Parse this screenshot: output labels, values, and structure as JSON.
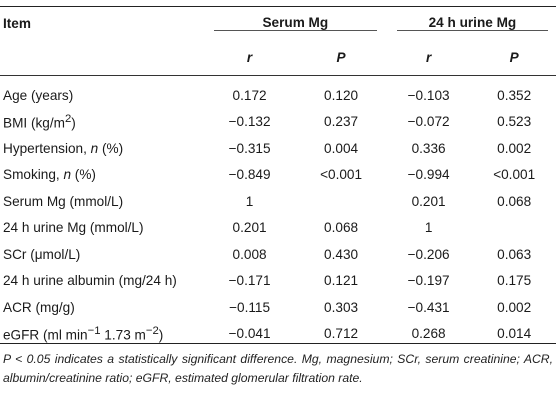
{
  "table": {
    "header": {
      "item": "Item",
      "group1": "Serum Mg",
      "group2": "24 h urine Mg",
      "r": "r",
      "p": "P"
    },
    "rows": [
      {
        "label": "Age (years)",
        "v": [
          "0.172",
          "0.120",
          "−0.103",
          "0.352"
        ]
      },
      {
        "label_html": "BMI (kg/m<sup>2</sup>)",
        "v": [
          "−0.132",
          "0.237",
          "−0.072",
          "0.523"
        ]
      },
      {
        "label_html": "Hypertension, <i>n</i> (%)",
        "v": [
          "−0.315",
          "0.004",
          "0.336",
          "0.002"
        ]
      },
      {
        "label_html": "Smoking, <i>n</i> (%)",
        "v": [
          "−0.849",
          "<0.001",
          "−0.994",
          "<0.001"
        ]
      },
      {
        "label": "Serum Mg (mmol/L)",
        "v": [
          "1",
          "",
          "0.201",
          "0.068"
        ]
      },
      {
        "label": "24 h urine Mg (mmol/L)",
        "v": [
          "0.201",
          "0.068",
          "1",
          ""
        ]
      },
      {
        "label": "SCr (μmol/L)",
        "v": [
          "0.008",
          "0.430",
          "−0.206",
          "0.063"
        ]
      },
      {
        "label": "24 h urine albumin (mg/24 h)",
        "v": [
          "−0.171",
          "0.121",
          "−0.197",
          "0.175"
        ]
      },
      {
        "label": "ACR (mg/g)",
        "v": [
          "−0.115",
          "0.303",
          "−0.431",
          "0.002"
        ]
      },
      {
        "label_html": "eGFR (ml min<sup>−1</sup> 1.73 m<sup>−2</sup>)",
        "v": [
          "−0.041",
          "0.712",
          "0.268",
          "0.014"
        ]
      }
    ]
  },
  "footnote": "P < 0.05 indicates a statistically significant difference. Mg, magnesium; SCr, serum creatinine; ACR, albumin/creatinine ratio; eGFR, estimated glomerular filtration rate."
}
